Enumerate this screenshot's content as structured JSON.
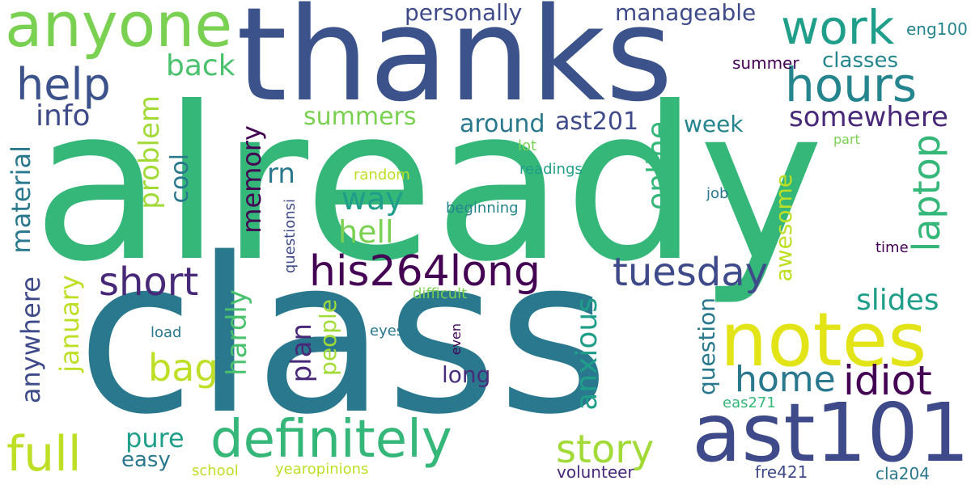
{
  "words": [
    {
      "text": "already",
      "color": "#35b779",
      "orient": "h"
    },
    {
      "text": "class",
      "color": "#2a788e",
      "orient": "h"
    },
    {
      "text": "thanks",
      "color": "#3b528b",
      "orient": "h"
    },
    {
      "text": "notes",
      "color": "#e2e418",
      "orient": "h"
    },
    {
      "text": "ast101",
      "color": "#3e4a89",
      "orient": "h"
    },
    {
      "text": "anyone",
      "color": "#7ad151",
      "orient": "h"
    },
    {
      "text": "definitely",
      "color": "#35b779",
      "orient": "h"
    },
    {
      "text": "hours",
      "color": "#25858e",
      "orient": "h"
    },
    {
      "text": "work",
      "color": "#1f9e89",
      "orient": "h"
    },
    {
      "text": "help",
      "color": "#3b528b",
      "orient": "h"
    },
    {
      "text": "his264long",
      "color": "#440154",
      "orient": "h"
    },
    {
      "text": "full",
      "color": "#bddf26",
      "orient": "h"
    },
    {
      "text": "idiot",
      "color": "#440154",
      "orient": "h"
    },
    {
      "text": "home",
      "color": "#2a788e",
      "orient": "h"
    },
    {
      "text": "tuesday",
      "color": "#3e4a89",
      "orient": "h"
    },
    {
      "text": "short",
      "color": "#482878",
      "orient": "h"
    },
    {
      "text": "story",
      "color": "#a2da37",
      "orient": "h"
    },
    {
      "text": "laptop",
      "color": "#35b779",
      "orient": "v"
    },
    {
      "text": "bag",
      "color": "#bddf26",
      "orient": "h"
    },
    {
      "text": "slides",
      "color": "#1f9e89",
      "orient": "h"
    },
    {
      "text": "somewhere",
      "color": "#482878",
      "orient": "h"
    },
    {
      "text": "anxious",
      "color": "#1f9e89",
      "orient": "v"
    },
    {
      "text": "way",
      "color": "#1f9e89",
      "orient": "h"
    },
    {
      "text": "hell",
      "color": "#7ad151",
      "orient": "h"
    },
    {
      "text": "online",
      "color": "#35b779",
      "orient": "v"
    },
    {
      "text": "info",
      "color": "#3e4a89",
      "orient": "h"
    },
    {
      "text": "back",
      "color": "#4ac16d",
      "orient": "h"
    },
    {
      "text": "problem",
      "color": "#a2da37",
      "orient": "v"
    },
    {
      "text": "material",
      "color": "#2a788e",
      "orient": "v"
    },
    {
      "text": "anywhere",
      "color": "#3e4a89",
      "orient": "v"
    },
    {
      "text": "january",
      "color": "#bddf26",
      "orient": "v"
    },
    {
      "text": "hardly",
      "color": "#4ac16d",
      "orient": "v"
    },
    {
      "text": "plan",
      "color": "#482878",
      "orient": "v"
    },
    {
      "text": "memory",
      "color": "#440154",
      "orient": "v"
    },
    {
      "text": "pure",
      "color": "#1f9e89",
      "orient": "h"
    },
    {
      "text": "easy",
      "color": "#2a788e",
      "orient": "h"
    },
    {
      "text": "around",
      "color": "#2a788e",
      "orient": "h"
    },
    {
      "text": "ast201",
      "color": "#3e4a89",
      "orient": "h"
    },
    {
      "text": "rn",
      "color": "#2a788e",
      "orient": "h"
    },
    {
      "text": "summers",
      "color": "#7ad151",
      "orient": "h"
    },
    {
      "text": "cool",
      "color": "#2a788e",
      "orient": "v"
    },
    {
      "text": "long",
      "color": "#472d7b",
      "orient": "h"
    },
    {
      "text": "people",
      "color": "#a2da37",
      "orient": "v"
    },
    {
      "text": "awesome",
      "color": "#bddf26",
      "orient": "v"
    },
    {
      "text": "question",
      "color": "#2a788e",
      "orient": "v"
    },
    {
      "text": "week",
      "color": "#25858e",
      "orient": "h"
    },
    {
      "text": "classes",
      "color": "#25858e",
      "orient": "h"
    },
    {
      "text": "personally",
      "color": "#3e4a89",
      "orient": "h"
    },
    {
      "text": "manageable",
      "color": "#3e4a89",
      "orient": "h"
    },
    {
      "text": "eng100",
      "color": "#25858e",
      "orient": "h"
    },
    {
      "text": "summer",
      "color": "#440154",
      "orient": "h"
    },
    {
      "text": "lot",
      "color": "#7ad151",
      "orient": "h"
    },
    {
      "text": "readings",
      "color": "#1f9e89",
      "orient": "h"
    },
    {
      "text": "random",
      "color": "#bddf26",
      "orient": "h"
    },
    {
      "text": "beginning",
      "color": "#25858e",
      "orient": "h"
    },
    {
      "text": "job",
      "color": "#2a788e",
      "orient": "h"
    },
    {
      "text": "part",
      "color": "#7ad151",
      "orient": "h"
    },
    {
      "text": "time",
      "color": "#440154",
      "orient": "h"
    },
    {
      "text": "questionsi",
      "color": "#3e4a89",
      "orient": "v"
    },
    {
      "text": "difficult",
      "color": "#7ad151",
      "orient": "h"
    },
    {
      "text": "load",
      "color": "#2a788e",
      "orient": "h"
    },
    {
      "text": "eyes",
      "color": "#2a788e",
      "orient": "h"
    },
    {
      "text": "even",
      "color": "#440154",
      "orient": "v"
    },
    {
      "text": "eas271",
      "color": "#35b779",
      "orient": "h"
    },
    {
      "text": "school",
      "color": "#bddf26",
      "orient": "h"
    },
    {
      "text": "yearopinions",
      "color": "#bddf26",
      "orient": "h"
    },
    {
      "text": "volunteer",
      "color": "#482878",
      "orient": "h"
    },
    {
      "text": "fre421",
      "color": "#3e4a89",
      "orient": "h"
    },
    {
      "text": "cla204",
      "color": "#2a788e",
      "orient": "h"
    }
  ]
}
